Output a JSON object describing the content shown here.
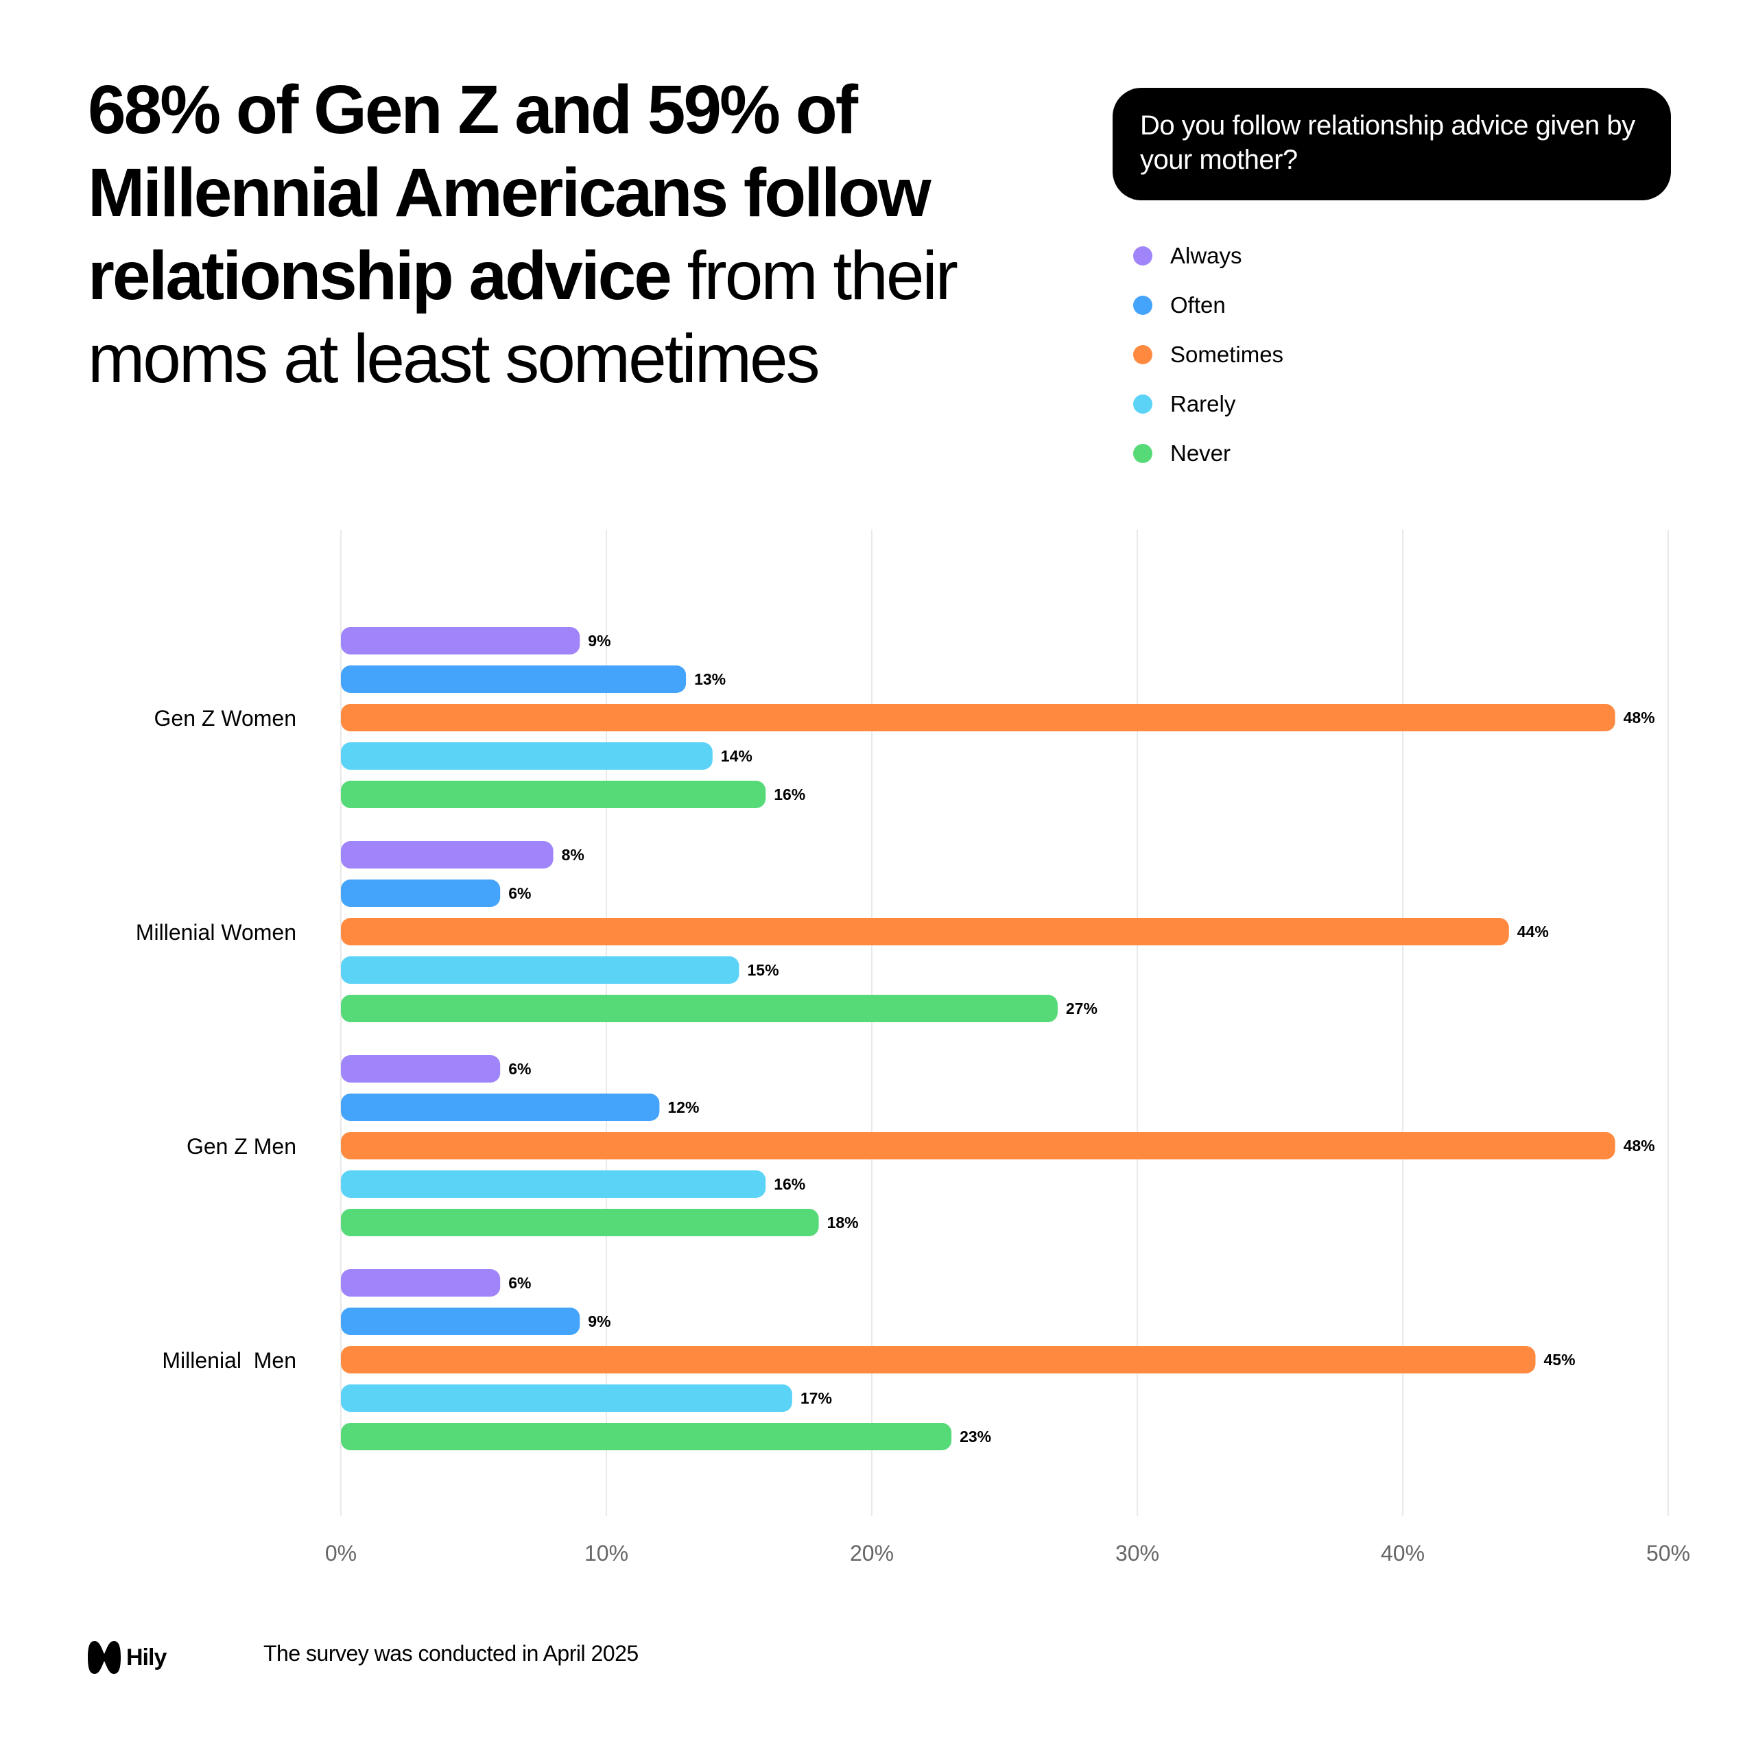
{
  "headline": {
    "bold_part": "68% of Gen Z and 59% of Millennial Americans follow relationship advice",
    "regular_part": " from their moms at least sometimes"
  },
  "question": "Do you follow relationship advice given by your mother?",
  "legend": [
    {
      "label": "Always",
      "color": "#A084FA"
    },
    {
      "label": "Often",
      "color": "#44A3FA"
    },
    {
      "label": "Sometimes",
      "color": "#FF8A3F"
    },
    {
      "label": "Rarely",
      "color": "#5BD3F7"
    },
    {
      "label": "Never",
      "color": "#56DA78"
    }
  ],
  "chart_data": {
    "type": "bar",
    "orientation": "horizontal",
    "title": "Do you follow relationship advice given by your mother?",
    "categories": [
      "Gen Z Women",
      "Millenial Women",
      "Gen Z Men",
      "Millenial  Men"
    ],
    "series": [
      {
        "name": "Always",
        "color": "#A084FA",
        "values": [
          9,
          8,
          6,
          6
        ],
        "labels": [
          "9%",
          "8%",
          "6%",
          "6%"
        ]
      },
      {
        "name": "Often",
        "color": "#44A3FA",
        "values": [
          13,
          6,
          12,
          9
        ],
        "labels": [
          "13%",
          "6%",
          "12%",
          "9%"
        ]
      },
      {
        "name": "Sometimes",
        "color": "#FF8A3F",
        "values": [
          48,
          44,
          48,
          45
        ],
        "labels": [
          "48%",
          "44%",
          "48%",
          "45%"
        ]
      },
      {
        "name": "Rarely",
        "color": "#5BD3F7",
        "values": [
          14,
          15,
          16,
          17
        ],
        "labels": [
          "14%",
          "15%",
          "16%",
          "17%"
        ]
      },
      {
        "name": "Never",
        "color": "#56DA78",
        "values": [
          16,
          27,
          18,
          23
        ],
        "labels": [
          "16%",
          "27%",
          "18%",
          "23%"
        ]
      }
    ],
    "xlim": [
      0,
      50
    ],
    "xticks": [
      0,
      10,
      20,
      30,
      40,
      50
    ],
    "xtick_labels": [
      "0%",
      "10%",
      "20%",
      "30%",
      "40%",
      "50%"
    ],
    "grid": true,
    "legend_position": "top-right"
  },
  "footer": {
    "brand": "Hily",
    "note": "The survey was conducted in April 2025"
  }
}
